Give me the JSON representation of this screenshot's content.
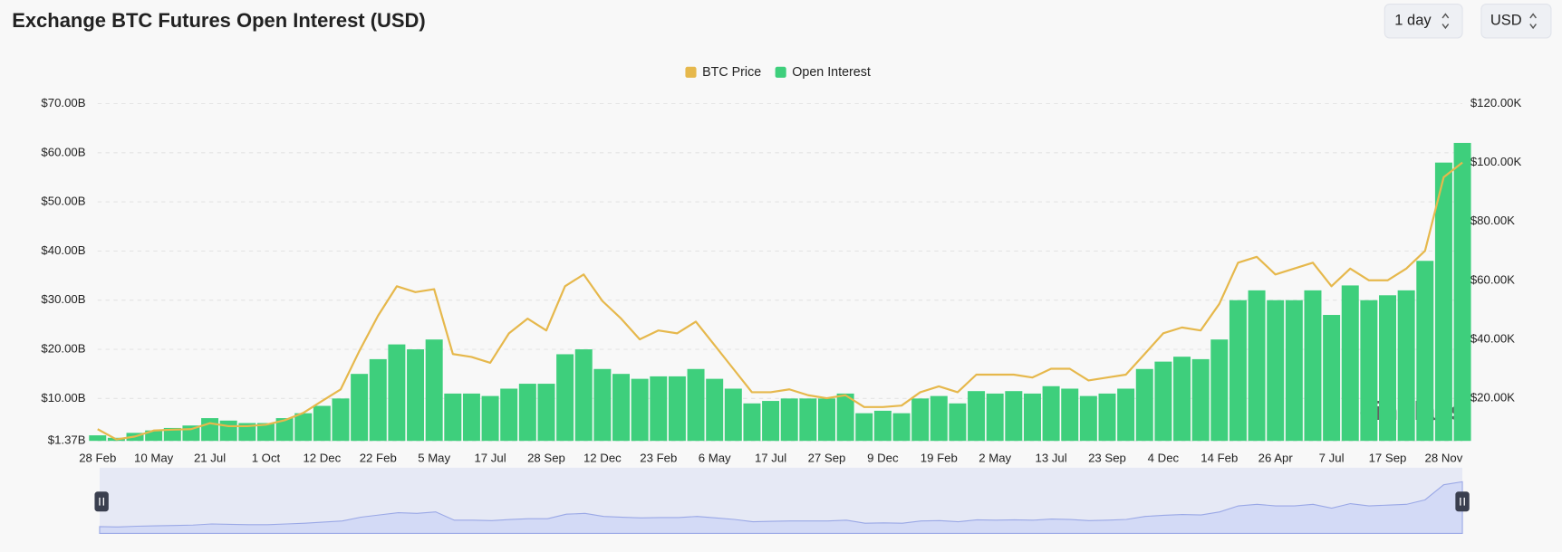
{
  "header": {
    "title": "Exchange BTC Futures Open Interest (USD)"
  },
  "controls": {
    "interval": "1 day",
    "currency": "USD"
  },
  "chart_data": {
    "type": "combo",
    "watermark": "coinglass",
    "legend": "top",
    "grid": true,
    "categories": [
      "28 Feb",
      null,
      null,
      "10 May",
      null,
      null,
      "21 Jul",
      null,
      null,
      "1 Oct",
      null,
      null,
      "12 Dec",
      null,
      null,
      "22 Feb",
      null,
      null,
      "5 May",
      null,
      null,
      "17 Jul",
      null,
      null,
      "28 Sep",
      null,
      null,
      "12 Dec",
      null,
      null,
      "23 Feb",
      null,
      null,
      "6 May",
      null,
      null,
      "17 Jul",
      null,
      null,
      "27 Sep",
      null,
      null,
      "9 Dec",
      null,
      null,
      "19 Feb",
      null,
      null,
      "2 May",
      null,
      null,
      "13 Jul",
      null,
      null,
      "23 Sep",
      null,
      null,
      "4 Dec",
      null,
      null,
      "14 Feb",
      null,
      null,
      "26 Apr",
      null,
      null,
      "7 Jul",
      null,
      null,
      "17 Sep",
      null,
      null,
      "28 Nov",
      null
    ],
    "series": [
      {
        "name": "BTC Price",
        "type": "line",
        "axis": "y2",
        "color": "#e6b84c",
        "values": [
          9.5,
          6,
          7,
          9,
          9.3,
          9.5,
          11.5,
          10.5,
          10.5,
          11,
          12.5,
          15,
          19,
          23,
          36,
          48,
          58,
          56,
          57,
          35,
          34,
          32,
          42,
          47,
          43,
          58,
          62,
          53,
          47,
          40,
          43,
          42,
          46,
          38,
          30,
          22,
          22,
          23,
          21,
          20,
          21,
          17,
          17,
          17.5,
          22,
          24,
          22,
          28,
          28,
          28,
          27,
          30,
          30,
          26,
          27,
          28,
          35,
          42,
          44,
          43,
          52,
          66,
          68,
          62,
          64,
          66,
          58,
          64,
          60,
          60,
          64,
          70,
          95,
          100
        ]
      },
      {
        "name": "Open Interest",
        "type": "bar",
        "color": "#3ecf7c",
        "values": [
          2.5,
          2,
          3,
          3.5,
          4,
          4.5,
          6,
          5.5,
          5,
          5,
          6,
          7,
          8.5,
          10,
          15,
          18,
          21,
          20,
          22,
          11,
          11,
          10.5,
          12,
          13,
          13,
          19,
          20,
          16,
          15,
          14,
          14.5,
          14.5,
          16,
          14,
          12,
          9,
          9.5,
          10,
          10,
          10,
          11,
          7,
          7.5,
          7,
          10,
          10.5,
          9,
          11.5,
          11,
          11.5,
          11,
          12.5,
          12,
          10.5,
          11,
          12,
          16,
          17.5,
          18.5,
          18,
          22,
          30,
          32,
          30,
          30,
          32,
          27,
          33,
          30,
          31,
          32,
          38,
          58,
          62
        ]
      }
    ],
    "ylim": [
      1.37,
      70
    ],
    "yticks": [
      {
        "value": 1.37,
        "label": "$1.37B"
      },
      {
        "value": 10,
        "label": "$10.00B"
      },
      {
        "value": 20,
        "label": "$20.00B"
      },
      {
        "value": 30,
        "label": "$30.00B"
      },
      {
        "value": 40,
        "label": "$40.00B"
      },
      {
        "value": 50,
        "label": "$50.00B"
      },
      {
        "value": 60,
        "label": "$60.00B"
      },
      {
        "value": 70,
        "label": "$70.00B"
      }
    ],
    "y2lim": [
      5.5,
      120
    ],
    "y2ticks": [
      {
        "value": 20,
        "label": "$20.00K"
      },
      {
        "value": 40,
        "label": "$40.00K"
      },
      {
        "value": 60,
        "label": "$60.00K"
      },
      {
        "value": 80,
        "label": "$80.00K"
      },
      {
        "value": 100,
        "label": "$100.00K"
      },
      {
        "value": 120,
        "label": "$120.00K"
      }
    ]
  }
}
